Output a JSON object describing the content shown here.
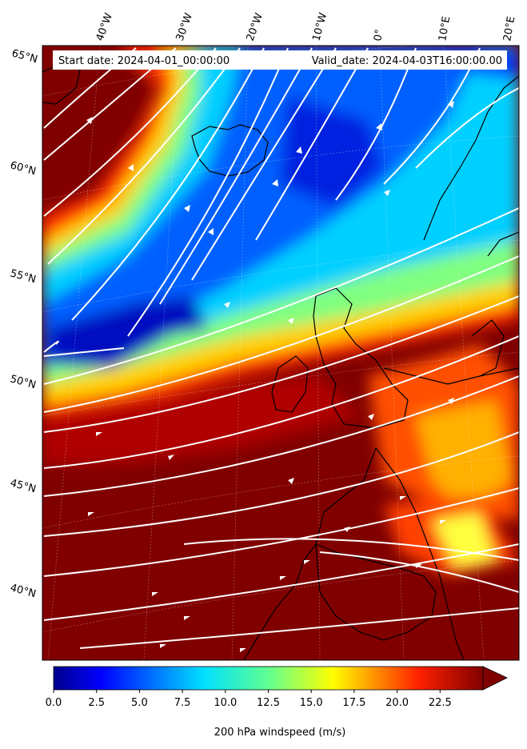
{
  "map": {
    "start_label": "Start date: 2024-04-01_00:00:00",
    "valid_label": "Valid_date: 2024-04-03T16:00:00.00",
    "lon_labels": [
      "40°W",
      "30°W",
      "20°W",
      "10°W",
      "0°",
      "10°E",
      "20°E"
    ],
    "lat_labels": [
      "65°N",
      "60°N",
      "55°N",
      "50°N",
      "45°N",
      "40°N"
    ],
    "field": "200 hPa windspeed",
    "units": "m/s"
  },
  "colorbar": {
    "title": "200 hPa windspeed (m/s)",
    "ticks": [
      "0.0",
      "2.5",
      "5.0",
      "7.5",
      "10.0",
      "12.5",
      "15.0",
      "17.5",
      "20.0",
      "22.5"
    ],
    "min": 0,
    "max": 25,
    "extend": "max",
    "colormap": "jet"
  },
  "colors": {
    "calm": "#0000a0",
    "moderate": "#40ffb0",
    "strong": "#ffe000",
    "jet_core": "#800000",
    "streamlines": "#ffffff",
    "coastline": "#000000"
  }
}
